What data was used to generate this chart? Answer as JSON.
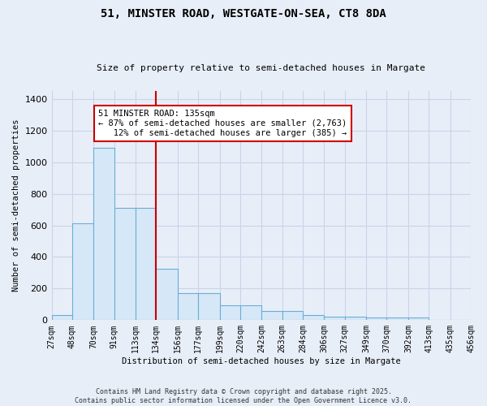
{
  "title1": "51, MINSTER ROAD, WESTGATE-ON-SEA, CT8 8DA",
  "title2": "Size of property relative to semi-detached houses in Margate",
  "xlabel": "Distribution of semi-detached houses by size in Margate",
  "ylabel": "Number of semi-detached properties",
  "bins": [
    27,
    48,
    70,
    91,
    113,
    134,
    156,
    177,
    199,
    220,
    242,
    263,
    284,
    306,
    327,
    349,
    370,
    392,
    413,
    435,
    456
  ],
  "counts": [
    35,
    615,
    1090,
    710,
    710,
    325,
    170,
    170,
    95,
    95,
    60,
    60,
    35,
    20,
    20,
    15,
    15,
    15,
    0,
    0
  ],
  "bar_color": "#d6e8f7",
  "bar_edge_color": "#6aaed6",
  "vline_x": 134,
  "annotation_line1": "51 MINSTER ROAD: 135sqm",
  "annotation_line2": "← 87% of semi-detached houses are smaller (2,763)",
  "annotation_line3": "   12% of semi-detached houses are larger (385) →",
  "annotation_box_color": "white",
  "annotation_box_edge_color": "#cc0000",
  "vline_color": "#cc0000",
  "background_color": "#e8eef8",
  "plot_bg_color": "#e8eef8",
  "grid_color": "#c8d4e8",
  "footnote": "Contains HM Land Registry data © Crown copyright and database right 2025.\nContains public sector information licensed under the Open Government Licence v3.0.",
  "ylim": [
    0,
    1450
  ],
  "yticks": [
    0,
    200,
    400,
    600,
    800,
    1000,
    1200,
    1400
  ]
}
